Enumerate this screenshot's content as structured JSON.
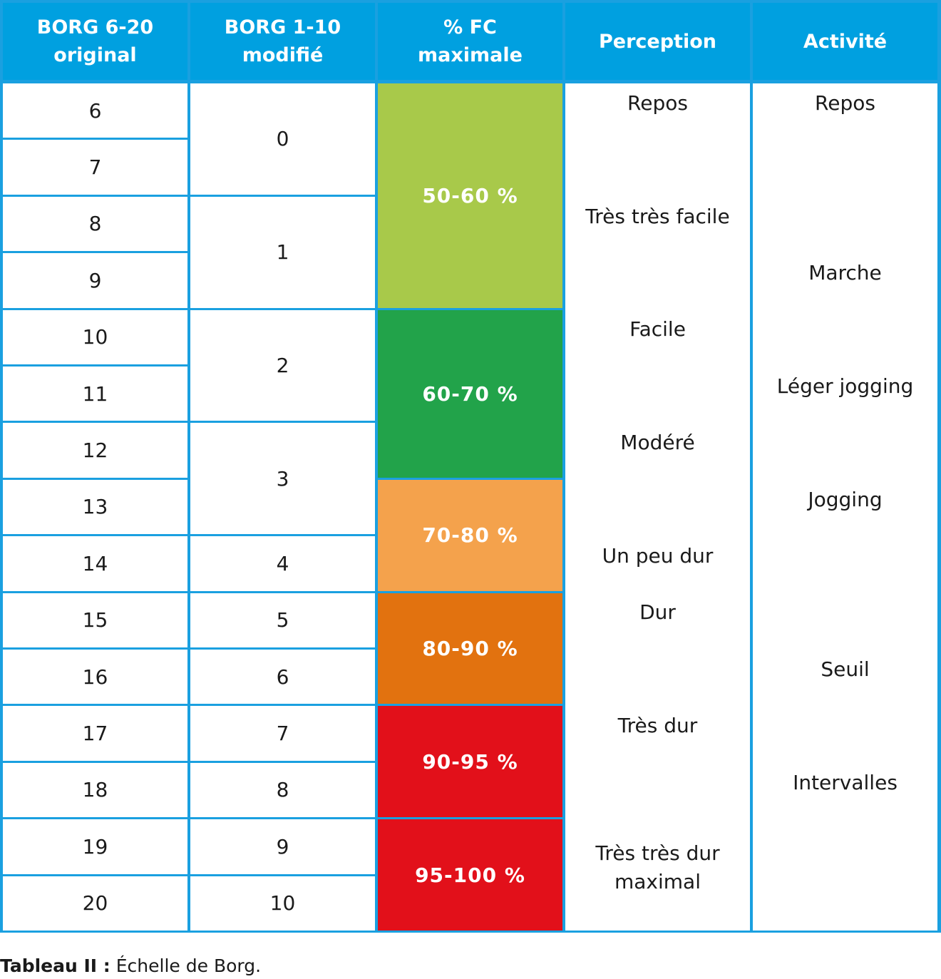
{
  "table": {
    "headers": [
      "BORG 6-20\noriginal",
      "BORG 1-10\nmodifié",
      "% FC\nmaximale",
      "Perception",
      "Activité"
    ],
    "borg_original": [
      "6",
      "7",
      "8",
      "9",
      "10",
      "11",
      "12",
      "13",
      "14",
      "15",
      "16",
      "17",
      "18",
      "19",
      "20"
    ],
    "borg_modified": [
      {
        "value": "0",
        "start": 0,
        "span": 2
      },
      {
        "value": "1",
        "start": 2,
        "span": 2
      },
      {
        "value": "2",
        "start": 4,
        "span": 2
      },
      {
        "value": "3",
        "start": 6,
        "span": 2
      },
      {
        "value": "4",
        "start": 8,
        "span": 1
      },
      {
        "value": "5",
        "start": 9,
        "span": 1
      },
      {
        "value": "6",
        "start": 10,
        "span": 1
      },
      {
        "value": "7",
        "start": 11,
        "span": 1
      },
      {
        "value": "8",
        "start": 12,
        "span": 1
      },
      {
        "value": "9",
        "start": 13,
        "span": 1
      },
      {
        "value": "10",
        "start": 14,
        "span": 1
      }
    ],
    "fc_bands": [
      {
        "label": "50-60 %",
        "start": 0,
        "span": 4,
        "color": "#a8c94a"
      },
      {
        "label": "60-70 %",
        "start": 4,
        "span": 3,
        "color": "#22a34a"
      },
      {
        "label": "70-80 %",
        "start": 7,
        "span": 2,
        "color": "#f4a24c"
      },
      {
        "label": "80-90 %",
        "start": 9,
        "span": 2,
        "color": "#e2720f"
      },
      {
        "label": "90-95 %",
        "start": 11,
        "span": 2,
        "color": "#e2101a"
      },
      {
        "label": "95-100 %",
        "start": 13,
        "span": 2,
        "color": "#e2101a"
      }
    ],
    "perception": [
      {
        "text": "Repos",
        "at": 0.35
      },
      {
        "text": "Très très facile",
        "at": 2.35
      },
      {
        "text": "Facile",
        "at": 4.35
      },
      {
        "text": "Modéré",
        "at": 6.35
      },
      {
        "text": "Un peu dur",
        "at": 8.35
      },
      {
        "text": "Dur",
        "at": 9.35
      },
      {
        "text": "Très dur",
        "at": 11.35
      },
      {
        "text": "Très très dur\nmaximal",
        "at": 13.85
      }
    ],
    "activity": [
      {
        "text": "Repos",
        "at": 0.35
      },
      {
        "text": "Marche",
        "at": 3.35
      },
      {
        "text": "Léger jogging",
        "at": 5.35
      },
      {
        "text": "Jogging",
        "at": 7.35
      },
      {
        "text": "Seuil",
        "at": 10.35
      },
      {
        "text": "Intervalles",
        "at": 12.35
      }
    ]
  },
  "caption": {
    "label": "Tableau II :",
    "text": " Échelle de Borg."
  },
  "colors": {
    "header": "#00a0e0",
    "grid": "#1aa0e0"
  }
}
